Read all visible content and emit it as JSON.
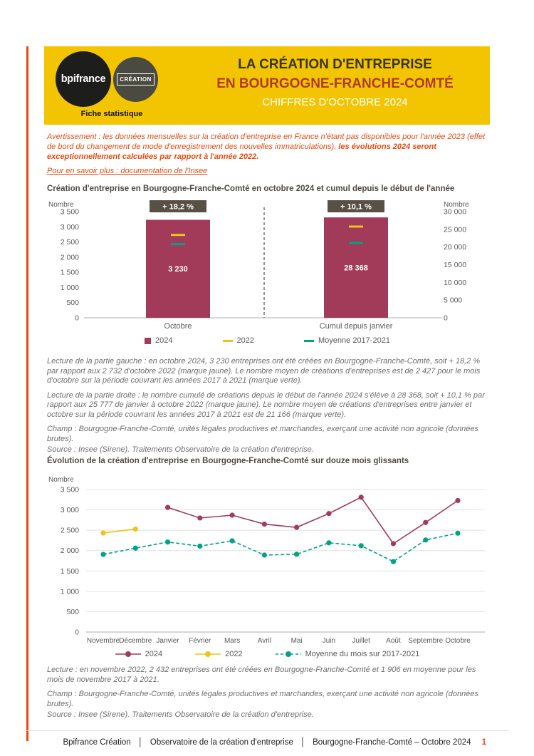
{
  "colors": {
    "banner_yellow": "#F2C500",
    "accent_orange": "#E8490F",
    "title_red": "#B03A28",
    "bar_maroon": "#A23A5A",
    "marker_yellow": "#EFC318",
    "marker_green": "#00A385",
    "badge_bg": "#595045",
    "heading_gray": "#4E4A42",
    "axis_text": "#595959"
  },
  "header": {
    "logo_primary": "bpifrance",
    "logo_secondary": "CRÉATION",
    "logo_tagline": "Fiche statistique",
    "title_line1": "LA CRÉATION D'ENTREPRISE",
    "title_line2": "EN BOURGOGNE-FRANCHE-COMTÉ",
    "title_line3": "CHIFFRES D'OCTOBRE 2024"
  },
  "notice": {
    "warning_regular": "Avertissement : les données mensuelles sur la création d'entreprise en France n'étant pas disponibles pour l'année 2023 (effet de bord du changement de mode d'enregistrement des nouvelles immatriculations),",
    "warning_bold": "les évolutions 2024 seront exceptionnellement calculées par rapport à l'année 2022.",
    "more_info_link": "Pour en savoir plus : documentation de l'Insee"
  },
  "section1": {
    "title": "Création d'entreprise en Bourgogne-Franche-Comté en octobre 2024 et cumul depuis le début de l'année",
    "lecture_left": "Lecture de la partie gauche : en octobre 2024, 3 230 entreprises ont été créées en Bourgogne-Franche-Comté, soit + 18,2 % par rapport aux 2 732 d'octobre 2022 (marque jaune). Le nombre moyen de créations d'entreprises est de 2 427 pour le mois d'octobre sur la période couvrant les années 2017 à 2021 (marque verte).",
    "lecture_right": "Lecture de la partie droite : le nombre cumulé de créations depuis le début de l'année 2024 s'élève à 28 368, soit + 10,1 % par rapport aux 25 777 de janvier à octobre 2022 (marque jaune). Le nombre moyen de créations d'entreprises entre janvier et octobre sur la période couvrant les années 2017 à 2021 est de 21 166 (marque verte).",
    "champ": "Champ : Bourgogne-Franche-Comté, unités légales productives et marchandes, exerçant une activité non agricole (données brutes).",
    "source": "Source : Insee (Sirene). Traitements Observatoire de la création d'entreprise."
  },
  "section2": {
    "title": "Évolution de la création d'entreprise en Bourgogne-Franche-Comté sur douze mois glissants",
    "lecture": "Lecture : en novembre 2022, 2 432 entreprises ont été créées en Bourgogne-Franche-Comté et 1 906 en moyenne pour les mois de novembre 2017 à 2021.",
    "champ": "Champ : Bourgogne-Franche-Comté, unités légales productives et marchandes, exerçant une activité non agricole (données brutes).",
    "source": "Source : Insee (Sirene). Traitements Observatoire de la création d'entreprise."
  },
  "footer": {
    "part1": "Bpifrance Création",
    "separator": "│",
    "part2": "Observatoire de la création d'entreprise",
    "part3": "Bourgogne-Franche-Comté – Octobre 2024",
    "page_number": "1"
  },
  "chart_data": [
    {
      "type": "bar",
      "title": "Création d'entreprise en Bourgogne-Franche-Comté en octobre 2024 et cumul depuis le début de l'année",
      "axis_label_left": "Nombre",
      "axis_label_right": "Nombre",
      "legend_position": "bottom",
      "panels": [
        {
          "category": "Octobre",
          "badge": "+ 18,2 %",
          "value": 3230,
          "value_label": "3 230",
          "ylim": [
            0,
            3500
          ],
          "ticks": [
            "3 500",
            "3 000",
            "2 500",
            "2 000",
            "1 500",
            "1 000",
            "500",
            "0"
          ],
          "marker_2022": 2732,
          "marker_mean": 2427
        },
        {
          "category": "Cumul depuis janvier",
          "badge": "+ 10,1 %",
          "value": 28368,
          "value_label": "28 368",
          "ylim": [
            0,
            30000
          ],
          "ticks": [
            "30 000",
            "25 000",
            "20 000",
            "15 000",
            "10 000",
            "5 000",
            "0"
          ],
          "marker_2022": 25777,
          "marker_mean": 21166
        }
      ],
      "legend": [
        {
          "label": "2024",
          "marker": "square",
          "color": "#A23A5A"
        },
        {
          "label": "2022",
          "marker": "dash",
          "color": "#EFC318"
        },
        {
          "label": "Moyenne 2017-2021",
          "marker": "dash",
          "color": "#00A385"
        }
      ]
    },
    {
      "type": "line",
      "title": "Évolution de la création d'entreprise en Bourgogne-Franche-Comté sur douze mois glissants",
      "axis_label": "Nombre",
      "ylim": [
        0,
        3500
      ],
      "yticks": [
        "3 500",
        "3 000",
        "2 500",
        "2 000",
        "1 500",
        "1 000",
        "500",
        "0"
      ],
      "grid": true,
      "legend_position": "bottom",
      "categories": [
        "Novembre",
        "Décembre",
        "Janvier",
        "Février",
        "Mars",
        "Avril",
        "Mai",
        "Juin",
        "Juillet",
        "Août",
        "Septembre",
        "Octobre"
      ],
      "series": [
        {
          "name": "2024",
          "color": "#A23A5A",
          "dashed": false,
          "values": [
            null,
            null,
            3060,
            2800,
            2870,
            2650,
            2570,
            2910,
            3310,
            2170,
            2690,
            3230
          ]
        },
        {
          "name": "2022",
          "color": "#EFC318",
          "dashed": false,
          "values": [
            2432,
            2530,
            null,
            null,
            null,
            null,
            null,
            null,
            null,
            null,
            null,
            null
          ]
        },
        {
          "name": "Moyenne du mois sur 2017-2021",
          "color": "#00A385",
          "dashed": true,
          "values": [
            1906,
            2060,
            2210,
            2110,
            2240,
            1890,
            1910,
            2190,
            2120,
            1730,
            2260,
            2427
          ]
        }
      ],
      "legend": [
        {
          "label": "2024",
          "color": "#A23A5A",
          "dashed": false
        },
        {
          "label": "2022",
          "color": "#EFC318",
          "dashed": false
        },
        {
          "label": "Moyenne du mois sur 2017-2021",
          "color": "#00A385",
          "dashed": true
        }
      ]
    }
  ]
}
